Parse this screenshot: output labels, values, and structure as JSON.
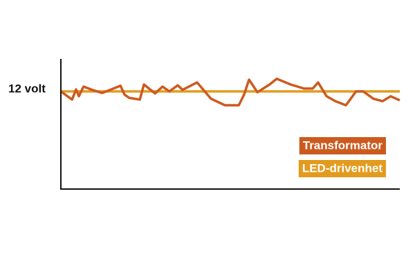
{
  "chart_data": {
    "type": "line",
    "xlim": [
      0,
      100
    ],
    "ylim": [
      0,
      16
    ],
    "yticks": [
      {
        "value": 12,
        "label": "12 volt"
      }
    ],
    "legend": "right",
    "series": [
      {
        "name": "Transformator",
        "color": "#cc5a1f",
        "x": [
          0,
          3.3,
          4.5,
          5.3,
          6.7,
          9.2,
          12.2,
          17.6,
          18.8,
          20.2,
          23.3,
          24.5,
          27.8,
          30.0,
          32.0,
          34.5,
          35.9,
          40.2,
          44.3,
          48.4,
          52.5,
          54.1,
          55.5,
          58.0,
          61.6,
          63.7,
          67.8,
          71.8,
          74.3,
          75.9,
          78.4,
          81.0,
          84.1,
          87.1,
          89.2,
          92.2,
          94.9,
          97.3,
          100
        ],
        "values": [
          12.0,
          11.0,
          12.25,
          11.4,
          12.6,
          12.2,
          11.8,
          12.7,
          11.6,
          11.2,
          11.0,
          12.85,
          11.75,
          12.6,
          12.0,
          12.75,
          12.2,
          13.1,
          11.1,
          10.3,
          10.3,
          11.65,
          13.45,
          11.9,
          12.85,
          13.55,
          12.85,
          12.35,
          12.35,
          13.1,
          11.4,
          10.8,
          10.3,
          12.0,
          12.0,
          11.1,
          10.8,
          11.4,
          10.9
        ]
      },
      {
        "name": "LED-drivenhet",
        "color": "#e39b1e",
        "x": [
          0,
          100
        ],
        "values": [
          12,
          12
        ]
      }
    ]
  }
}
